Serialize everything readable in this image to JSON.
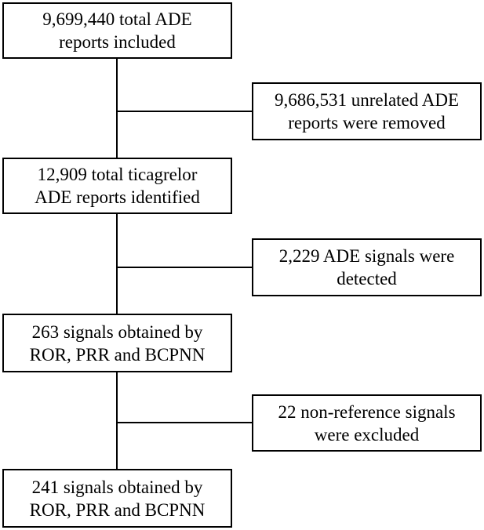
{
  "flowchart": {
    "steps": [
      {
        "line1": "9,699,440 total ADE",
        "line2": "reports included"
      },
      {
        "line1": "12,909 total ticagrelor",
        "line2": "ADE reports identified"
      },
      {
        "line1": "263 signals obtained by",
        "line2": "ROR, PRR and BCPNN"
      },
      {
        "line1": "241 signals obtained by",
        "line2": "ROR, PRR and BCPNN"
      }
    ],
    "exclusions": [
      {
        "line1": "9,686,531 unrelated ADE",
        "line2": "reports were removed"
      },
      {
        "line1": "2,229 ADE signals were",
        "line2": "detected"
      },
      {
        "line1": "22 non-reference signals",
        "line2": "were excluded"
      }
    ]
  }
}
